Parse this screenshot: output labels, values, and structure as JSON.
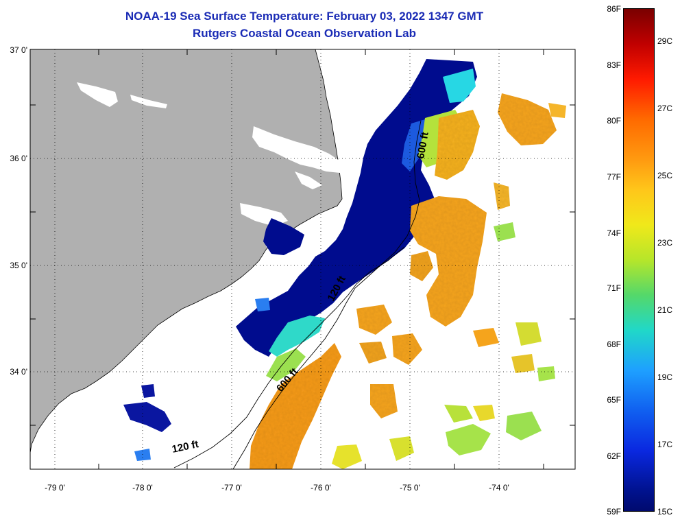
{
  "title": {
    "line1": "NOAA-19 Sea Surface Temperature:  February 03, 2022 1347 GMT",
    "line2": "Rutgers Coastal Ocean Observation Lab"
  },
  "axes": {
    "lat_labels": [
      "37 0'",
      "36 0'",
      "35 0'",
      "34 0'"
    ],
    "lat_values": [
      37,
      36,
      35,
      34
    ],
    "lon_labels": [
      "-79 0'",
      "-78 0'",
      "-77 0'",
      "-76 0'",
      "-75 0'",
      "-74 0'"
    ],
    "lon_values": [
      -79,
      -78,
      -77,
      -76,
      -75,
      -74
    ],
    "lat_range": [
      33.1,
      37.0
    ],
    "lon_range": [
      -79.3,
      -73.2
    ]
  },
  "contours": {
    "shelf_label": "120 ft",
    "slope_label": "600 ft"
  },
  "colorbar": {
    "fahrenheit": [
      "86F",
      "83F",
      "80F",
      "77F",
      "74F",
      "71F",
      "68F",
      "65F",
      "62F",
      "59F"
    ],
    "celsius": [
      "29C",
      "27C",
      "25C",
      "23C",
      "21C",
      "19C",
      "17C",
      "15C"
    ],
    "min_c": 15,
    "max_c": 30
  },
  "colors": {
    "land": "#b0b0b0",
    "cold_water": "#000c8e",
    "warm_water": "#f5a41c",
    "title": "#1a2bb5"
  }
}
